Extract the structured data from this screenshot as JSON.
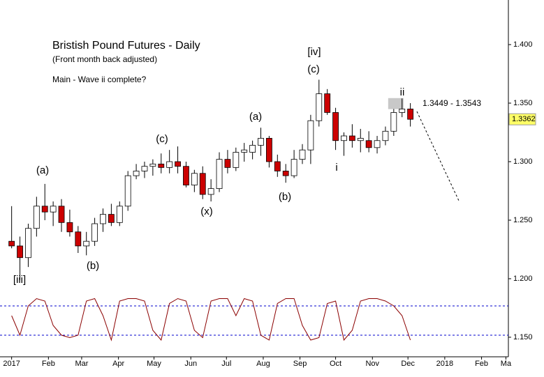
{
  "chart_data": {
    "type": "candlestick",
    "title": "Bristish Pound Futures - Daily",
    "subtitle": "(Front month back adjusted)",
    "note": "Main - Wave ii complete?",
    "x": [
      0,
      1,
      2,
      3,
      4,
      5,
      6,
      7,
      8,
      9,
      10,
      11,
      12,
      13,
      14,
      15,
      16,
      17,
      18,
      19,
      20,
      21,
      22,
      23,
      24,
      25,
      26,
      27,
      28,
      29,
      30,
      31,
      32,
      33,
      34,
      35,
      36,
      37,
      38,
      39,
      40,
      41,
      42,
      43,
      44,
      45,
      46,
      47,
      48
    ],
    "open": [
      1.232,
      1.228,
      1.218,
      1.243,
      1.262,
      1.257,
      1.262,
      1.248,
      1.24,
      1.228,
      1.232,
      1.247,
      1.255,
      1.248,
      1.262,
      1.288,
      1.292,
      1.296,
      1.298,
      1.295,
      1.3,
      1.296,
      1.28,
      1.29,
      1.272,
      1.277,
      1.302,
      1.295,
      1.308,
      1.308,
      1.314,
      1.32,
      1.3,
      1.292,
      1.288,
      1.302,
      1.31,
      1.335,
      1.358,
      1.342,
      1.318,
      1.322,
      1.318,
      1.318,
      1.312,
      1.318,
      1.326,
      1.342,
      1.345
    ],
    "high": [
      1.262,
      1.236,
      1.247,
      1.27,
      1.281,
      1.266,
      1.268,
      1.259,
      1.245,
      1.24,
      1.252,
      1.26,
      1.264,
      1.266,
      1.292,
      1.298,
      1.3,
      1.302,
      1.307,
      1.31,
      1.313,
      1.3,
      1.293,
      1.296,
      1.285,
      1.308,
      1.31,
      1.312,
      1.316,
      1.318,
      1.329,
      1.322,
      1.306,
      1.298,
      1.31,
      1.315,
      1.34,
      1.37,
      1.362,
      1.346,
      1.325,
      1.332,
      1.328,
      1.326,
      1.322,
      1.33,
      1.345,
      1.354,
      1.35
    ],
    "low": [
      1.226,
      1.199,
      1.21,
      1.236,
      1.25,
      1.245,
      1.24,
      1.236,
      1.222,
      1.22,
      1.228,
      1.24,
      1.245,
      1.245,
      1.258,
      1.285,
      1.286,
      1.288,
      1.29,
      1.29,
      1.29,
      1.278,
      1.274,
      1.268,
      1.266,
      1.274,
      1.29,
      1.292,
      1.3,
      1.302,
      1.305,
      1.295,
      1.287,
      1.282,
      1.286,
      1.298,
      1.298,
      1.33,
      1.34,
      1.31,
      1.305,
      1.312,
      1.308,
      1.308,
      1.307,
      1.314,
      1.322,
      1.338,
      1.33
    ],
    "close": [
      1.228,
      1.218,
      1.243,
      1.262,
      1.257,
      1.262,
      1.248,
      1.24,
      1.228,
      1.232,
      1.247,
      1.255,
      1.248,
      1.262,
      1.288,
      1.292,
      1.296,
      1.298,
      1.295,
      1.3,
      1.296,
      1.28,
      1.29,
      1.272,
      1.277,
      1.302,
      1.295,
      1.308,
      1.31,
      1.314,
      1.32,
      1.3,
      1.292,
      1.288,
      1.302,
      1.31,
      1.335,
      1.358,
      1.342,
      1.318,
      1.322,
      1.318,
      1.32,
      1.312,
      1.318,
      1.326,
      1.342,
      1.345,
      1.3362
    ],
    "up_color": "#ffffff",
    "down_color": "#cc0000",
    "last_price_label": "1.3362",
    "target_zone": {
      "label": "1.3449 - 1.3543",
      "range": [
        1.3449,
        1.3543
      ]
    },
    "annotations": [
      "[iii]",
      "(a)",
      "(b)",
      "(c)",
      "(x)",
      "(a)",
      "(b)",
      "[iv]",
      "(c)",
      "i",
      "ii"
    ],
    "indicator": {
      "values": [
        60,
        20,
        80,
        95,
        90,
        40,
        20,
        15,
        20,
        90,
        95,
        60,
        10,
        90,
        95,
        95,
        90,
        30,
        10,
        85,
        95,
        90,
        30,
        15,
        90,
        95,
        95,
        60,
        95,
        90,
        20,
        10,
        85,
        95,
        95,
        40,
        10,
        15,
        85,
        90,
        10,
        30,
        90,
        95,
        95,
        90,
        80,
        60,
        10
      ],
      "ylim": [
        0,
        100
      ],
      "levels": [
        80,
        20
      ],
      "color": "#8b0000",
      "level_color": "#0000cc"
    },
    "xlim": [
      -1.4,
      59.8
    ],
    "xticks": [
      {
        "value": 0,
        "label": "2017"
      },
      {
        "value": 4.43,
        "label": "Feb"
      },
      {
        "value": 8.43,
        "label": "Mar"
      },
      {
        "value": 12.86,
        "label": "Apr"
      },
      {
        "value": 17.14,
        "label": "May"
      },
      {
        "value": 21.57,
        "label": "Jun"
      },
      {
        "value": 25.86,
        "label": "Jul"
      },
      {
        "value": 30.29,
        "label": "Aug"
      },
      {
        "value": 34.71,
        "label": "Sep"
      },
      {
        "value": 39,
        "label": "Oct"
      },
      {
        "value": 43.43,
        "label": "Nov"
      },
      {
        "value": 47.71,
        "label": "Dec"
      },
      {
        "value": 52.14,
        "label": "2018"
      },
      {
        "value": 56.57,
        "label": "Feb"
      },
      {
        "value": 59.5,
        "label": "Ma"
      }
    ],
    "ylim": [
      1.1333,
      1.4381
    ],
    "yticks": [
      {
        "value": 1.4,
        "label": "1.400"
      },
      {
        "value": 1.35,
        "label": "1.350"
      },
      {
        "value": 1.3,
        "label": "1.300"
      },
      {
        "value": 1.25,
        "label": "1.250"
      },
      {
        "value": 1.2,
        "label": "1.200"
      },
      {
        "value": 1.15,
        "label": "1.150"
      }
    ]
  }
}
